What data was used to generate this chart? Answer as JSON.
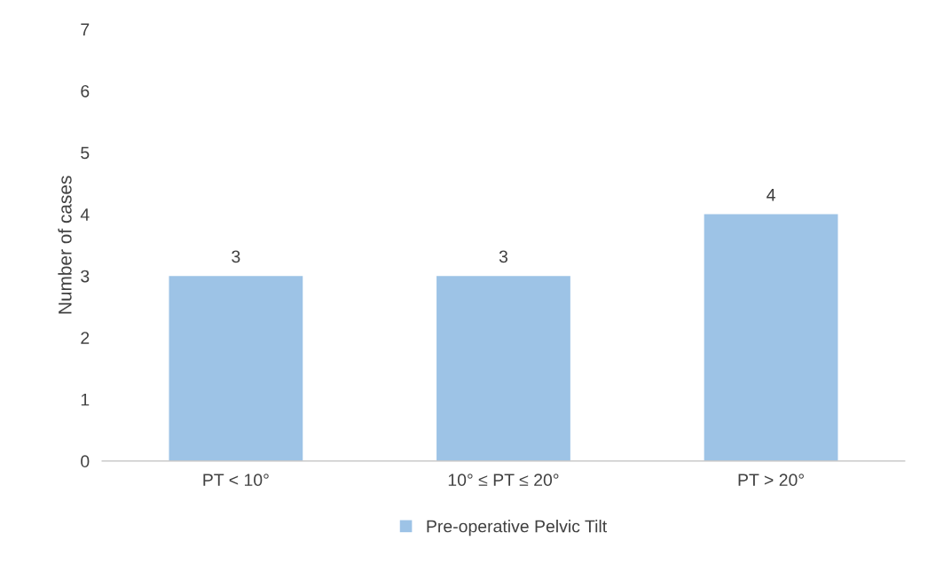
{
  "chart_data": {
    "type": "bar",
    "ylabel": "Number of cases",
    "categories": [
      "PT < 10°",
      "10° ≤ PT ≤ 20°",
      "PT > 20°"
    ],
    "series": [
      {
        "name": "Pre-operative Pelvic Tilt",
        "color": "#9dc3e6",
        "values": [
          3,
          3,
          4
        ]
      }
    ],
    "ylim": [
      0,
      7
    ],
    "yticks": [
      0,
      1,
      2,
      3,
      4,
      5,
      6,
      7
    ],
    "grid": false,
    "legend": "bottom",
    "data_labels": true
  }
}
